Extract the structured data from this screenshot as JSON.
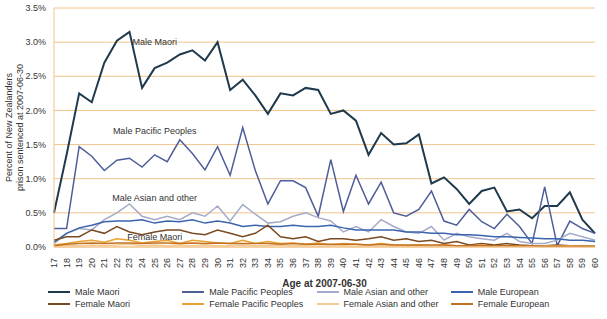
{
  "chart_data": {
    "type": "line",
    "x_label": "Age at 2007-06-30",
    "y_label": "Percent of New Zealanders prison sentenced at 2007-06-30",
    "categories": [
      "17",
      "18",
      "19",
      "20",
      "21",
      "22",
      "23",
      "24",
      "25",
      "26",
      "27",
      "28",
      "29",
      "30",
      "31",
      "32",
      "33",
      "34",
      "35",
      "36",
      "37",
      "38",
      "39",
      "40",
      "41",
      "42",
      "43",
      "44",
      "45",
      "46",
      "47",
      "48",
      "49",
      "50",
      "51",
      "52",
      "53",
      "54",
      "55",
      "56",
      "57",
      "58",
      "59",
      "60"
    ],
    "series": [
      {
        "name": "Male Maori",
        "color": "#1e3a4c",
        "values": [
          0.5,
          1.35,
          2.25,
          2.12,
          2.7,
          3.02,
          3.15,
          2.33,
          2.62,
          2.7,
          2.82,
          2.88,
          2.73,
          3.0,
          2.3,
          2.45,
          2.22,
          1.95,
          2.25,
          2.22,
          2.33,
          2.3,
          1.95,
          2.0,
          1.85,
          1.35,
          1.67,
          1.5,
          1.52,
          1.65,
          0.93,
          1.02,
          0.85,
          0.63,
          0.82,
          0.87,
          0.52,
          0.55,
          0.42,
          0.6,
          0.6,
          0.8,
          0.4,
          0.2
        ]
      },
      {
        "name": "Male Pacific Peoples",
        "color": "#4f5d99",
        "values": [
          0.27,
          0.27,
          1.47,
          1.33,
          1.12,
          1.27,
          1.3,
          1.17,
          1.35,
          1.25,
          1.57,
          1.37,
          1.13,
          1.47,
          1.05,
          1.75,
          1.12,
          0.63,
          0.97,
          0.97,
          0.87,
          0.45,
          1.28,
          0.52,
          1.05,
          0.63,
          0.95,
          0.5,
          0.45,
          0.55,
          0.82,
          0.38,
          0.32,
          0.55,
          0.37,
          0.27,
          0.48,
          0.3,
          0.05,
          0.88,
          0.02,
          0.38,
          0.27,
          0.2
        ]
      },
      {
        "name": "Male Asian and other",
        "color": "#a4abc9",
        "values": [
          0.05,
          0.2,
          0.27,
          0.25,
          0.4,
          0.5,
          0.63,
          0.45,
          0.4,
          0.45,
          0.4,
          0.5,
          0.45,
          0.6,
          0.38,
          0.62,
          0.48,
          0.35,
          0.37,
          0.45,
          0.5,
          0.43,
          0.38,
          0.22,
          0.3,
          0.22,
          0.4,
          0.3,
          0.22,
          0.2,
          0.3,
          0.1,
          0.2,
          0.15,
          0.12,
          0.1,
          0.2,
          0.08,
          0.05,
          0.05,
          0.1,
          0.2,
          0.15,
          0.1
        ]
      },
      {
        "name": "Male European",
        "color": "#3a64ad",
        "values": [
          0.07,
          0.2,
          0.28,
          0.32,
          0.37,
          0.38,
          0.38,
          0.4,
          0.35,
          0.38,
          0.37,
          0.4,
          0.35,
          0.38,
          0.35,
          0.3,
          0.32,
          0.3,
          0.3,
          0.32,
          0.3,
          0.3,
          0.32,
          0.28,
          0.25,
          0.25,
          0.25,
          0.25,
          0.22,
          0.22,
          0.2,
          0.2,
          0.18,
          0.18,
          0.17,
          0.15,
          0.15,
          0.14,
          0.13,
          0.12,
          0.12,
          0.1,
          0.1,
          0.08
        ]
      },
      {
        "name": "Female Maori",
        "color": "#7a4a22",
        "values": [
          0.1,
          0.15,
          0.15,
          0.25,
          0.2,
          0.3,
          0.22,
          0.18,
          0.22,
          0.25,
          0.25,
          0.2,
          0.18,
          0.25,
          0.2,
          0.15,
          0.2,
          0.32,
          0.15,
          0.12,
          0.15,
          0.08,
          0.12,
          0.12,
          0.1,
          0.12,
          0.15,
          0.1,
          0.12,
          0.08,
          0.1,
          0.05,
          0.08,
          0.03,
          0.05,
          0.03,
          0.05,
          0.03,
          0.02,
          0.02,
          0.03,
          0.02,
          0.02,
          0.01
        ]
      },
      {
        "name": "Female Pacific Peoples",
        "color": "#e9a231",
        "values": [
          0.03,
          0.05,
          0.08,
          0.1,
          0.07,
          0.12,
          0.1,
          0.06,
          0.08,
          0.1,
          0.05,
          0.1,
          0.08,
          0.06,
          0.05,
          0.1,
          0.05,
          0.08,
          0.05,
          0.06,
          0.04,
          0.06,
          0.03,
          0.05,
          0.04,
          0.03,
          0.05,
          0.03,
          0.02,
          0.03,
          0.02,
          0.03,
          0.02,
          0.02,
          0.03,
          0.01,
          0.02,
          0.02,
          0.01,
          0.02,
          0.01,
          0.02,
          0.01,
          0.01
        ]
      },
      {
        "name": "Female Asian and other",
        "color": "#f5c992",
        "values": [
          0.01,
          0.02,
          0.02,
          0.03,
          0.02,
          0.03,
          0.04,
          0.02,
          0.03,
          0.02,
          0.03,
          0.02,
          0.03,
          0.02,
          0.02,
          0.03,
          0.02,
          0.02,
          0.03,
          0.02,
          0.02,
          0.01,
          0.02,
          0.02,
          0.01,
          0.02,
          0.01,
          0.02,
          0.01,
          0.01,
          0.02,
          0.01,
          0.01,
          0.01,
          0.02,
          0.01,
          0.01,
          0.01,
          0.01,
          0.01,
          0.01,
          0.01,
          0.01,
          0.01
        ]
      },
      {
        "name": "Female European",
        "color": "#c27122",
        "values": [
          0.02,
          0.04,
          0.05,
          0.06,
          0.05,
          0.06,
          0.06,
          0.05,
          0.06,
          0.06,
          0.05,
          0.06,
          0.05,
          0.06,
          0.05,
          0.05,
          0.05,
          0.05,
          0.04,
          0.05,
          0.04,
          0.04,
          0.04,
          0.04,
          0.04,
          0.03,
          0.04,
          0.03,
          0.03,
          0.03,
          0.03,
          0.03,
          0.02,
          0.02,
          0.02,
          0.02,
          0.02,
          0.02,
          0.02,
          0.01,
          0.01,
          0.01,
          0.01,
          0.01
        ]
      }
    ],
    "ylim": [
      0,
      3.5
    ],
    "yticks": [
      {
        "value": 0,
        "label": "0.0%"
      },
      {
        "value": 0.5,
        "label": "0.5%"
      },
      {
        "value": 1,
        "label": "1.0%"
      },
      {
        "value": 1.5,
        "label": "1.5%"
      },
      {
        "value": 2,
        "label": "2.0%"
      },
      {
        "value": 2.5,
        "label": "2.5%"
      },
      {
        "value": 3,
        "label": "3.0%"
      },
      {
        "value": 3.5,
        "label": "3.5%"
      }
    ],
    "grid": true,
    "legend": "bottom",
    "annotations": [
      {
        "text": "Male Maori",
        "x": "25",
        "y": 3.0
      },
      {
        "text": "Male Pacific Peoples",
        "x": "25",
        "y": 1.7
      },
      {
        "text": "Male Asian and other",
        "x": "25",
        "y": 0.72
      },
      {
        "text": "Female Maori",
        "x": "25",
        "y": 0.15
      }
    ]
  }
}
